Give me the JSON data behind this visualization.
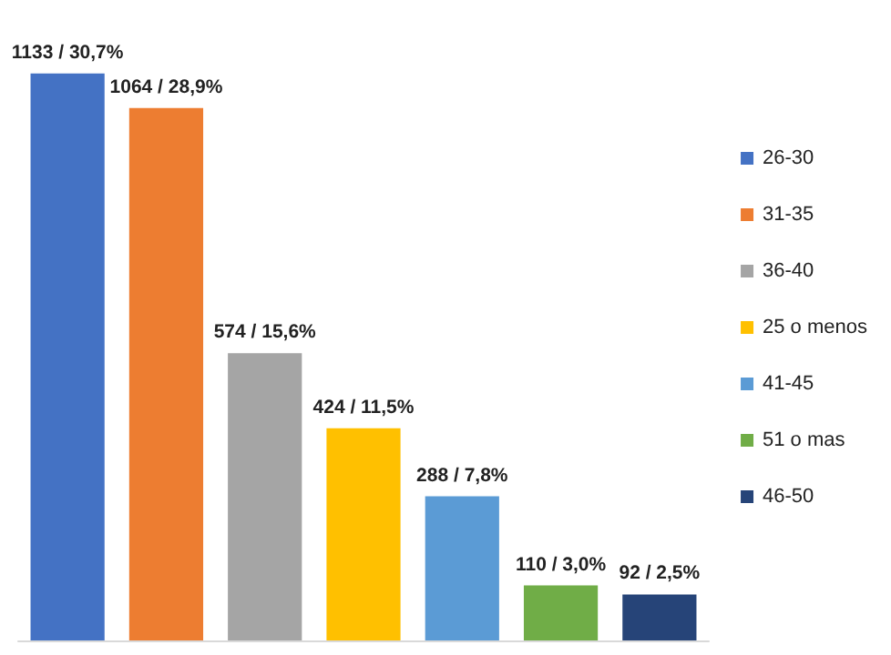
{
  "chart_data": {
    "type": "bar",
    "categories": [
      null,
      null,
      null,
      null,
      null,
      null,
      null
    ],
    "stacked": true,
    "legend": "right",
    "series": [
      {
        "name": "26-30",
        "color": "#4472c4",
        "values": [
          1133,
          null,
          null,
          null,
          null,
          null,
          null
        ],
        "value_labels": [
          "1133 / 30,7%",
          null,
          null,
          null,
          null,
          null,
          null
        ]
      },
      {
        "name": "31-35",
        "color": "#ed7d31",
        "values": [
          null,
          1064,
          null,
          null,
          null,
          null,
          null
        ],
        "value_labels": [
          null,
          "1064 / 28,9%",
          null,
          null,
          null,
          null,
          null
        ]
      },
      {
        "name": "36-40",
        "color": "#a5a5a5",
        "values": [
          null,
          null,
          574,
          null,
          null,
          null,
          null
        ],
        "value_labels": [
          null,
          null,
          "574 / 15,6%",
          null,
          null,
          null,
          null
        ]
      },
      {
        "name": "25 o menos",
        "color": "#ffc000",
        "values": [
          null,
          null,
          null,
          424,
          null,
          null,
          null
        ],
        "value_labels": [
          null,
          null,
          null,
          "424 / 11,5%",
          null,
          null,
          null
        ]
      },
      {
        "name": "41-45",
        "color": "#5b9bd5",
        "values": [
          null,
          null,
          null,
          null,
          288,
          null,
          null
        ],
        "value_labels": [
          null,
          null,
          null,
          null,
          "288 / 7,8%",
          null,
          null
        ]
      },
      {
        "name": "51 o mas",
        "color": "#70ad47",
        "values": [
          null,
          null,
          null,
          null,
          null,
          110,
          null
        ],
        "value_labels": [
          null,
          null,
          null,
          null,
          null,
          "110 / 3,0%",
          null
        ]
      },
      {
        "name": "46-50",
        "color": "#264478",
        "values": [
          null,
          null,
          null,
          null,
          null,
          null,
          92
        ],
        "value_labels": [
          null,
          null,
          null,
          null,
          null,
          null,
          "92 / 2,5%"
        ]
      }
    ]
  }
}
